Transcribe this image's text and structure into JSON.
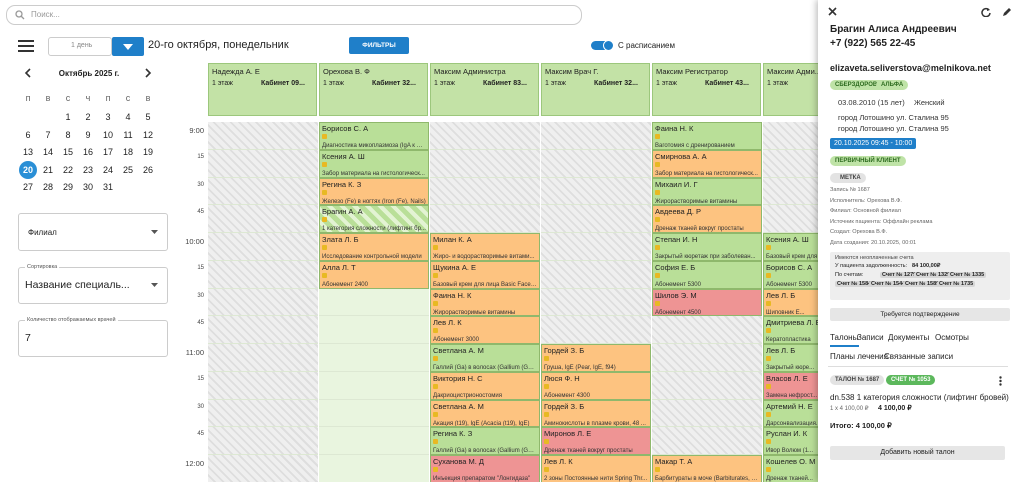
{
  "search_placeholder": "Поиск...",
  "toolbar": {
    "period": "1 день",
    "date": "20-го октября, понедельник",
    "filters": "ФИЛЬТРЫ",
    "schedule_toggle": "С расписанием"
  },
  "calendar": {
    "month": "Октябрь 2025 г.",
    "weekdays": [
      "п",
      "в",
      "с",
      "ч",
      "п",
      "с",
      "в"
    ],
    "weeks": [
      [
        null,
        null,
        1,
        2,
        3,
        4,
        5
      ],
      [
        6,
        7,
        8,
        9,
        10,
        11,
        12
      ],
      [
        13,
        14,
        15,
        16,
        17,
        18,
        19
      ],
      [
        20,
        21,
        22,
        23,
        24,
        25,
        26
      ],
      [
        27,
        28,
        29,
        30,
        31,
        null,
        null
      ]
    ],
    "selected": 20
  },
  "filters": {
    "branch": "Филиал",
    "sort_label": "Сортировка",
    "sort_value": "Название специаль...",
    "count_label": "Количество отображаемых врачей",
    "count_value": 7
  },
  "schedule": {
    "times": [
      "9:00",
      "15",
      "30",
      "45",
      "10:00",
      "15",
      "30",
      "45",
      "11:00",
      "15",
      "30",
      "45",
      "12:00"
    ],
    "doctors": [
      {
        "name": "Надежда А. Е",
        "floor": "1 этаж",
        "cabinet": "Кабинет 09...",
        "slots": [
          null,
          null,
          null,
          null,
          null,
          null,
          null,
          null,
          null,
          null,
          null,
          null,
          null
        ]
      },
      {
        "name": "Орехова В. Ф",
        "floor": "1 этаж",
        "cabinet": "Кабинет 32...",
        "slots": [
          {
            "patient": "Борисов С. А",
            "service": "Диагностика микоплазмоза (IgA к М...",
            "color": "#b9df98"
          },
          {
            "patient": "Ксения А. Ш",
            "service": "Забор материала на гистологическ...",
            "color": "#b9df98"
          },
          {
            "patient": "Регина К. З",
            "service": "Железо (Fe) в ногтях (Iron (Fe), Nails)",
            "color": "#fdc380"
          },
          {
            "patient": "Брагин А. А",
            "service": "1 категория сложности (лифтинг бр...",
            "color": "#b9df98",
            "striped": true
          },
          {
            "patient": "Злата Л. Б",
            "service": "Исследование контрольной модели",
            "color": "#fdc380"
          },
          {
            "patient": "Алла Л. Т",
            "service": "Абонемент 2400",
            "color": "#fdc380"
          },
          null,
          null,
          null,
          null,
          null,
          null,
          null
        ]
      },
      {
        "name": "Максим Администра...",
        "floor": "1 этаж",
        "cabinet": "Кабинет 83...",
        "slots": [
          null,
          null,
          null,
          null,
          {
            "patient": "Милан К. А",
            "service": "Жиро- и водорастворимые витами...",
            "color": "#fdc380"
          },
          {
            "patient": "Щукина А. Е",
            "service": "Базовый крем для лица Basic Face C...",
            "color": "#fdc380"
          },
          {
            "patient": "Фаина Н. К",
            "service": "Жирорастворимые витамины",
            "color": "#fdc380"
          },
          {
            "patient": "Лев Л. К",
            "service": "Абонемент 3000",
            "color": "#fdc380"
          },
          {
            "patient": "Светлана А. М",
            "service": "Галлий (Ga) в волосах (Gallium (Ga)...",
            "color": "#b9df98"
          },
          {
            "patient": "Виктория Н. С",
            "service": "Дакриоцистрионостомия",
            "color": "#fdc380"
          },
          {
            "patient": "Светлана А. М",
            "service": "Акация (t19), IgE (Acacia (t19), IgE)",
            "color": "#fdc380"
          },
          {
            "patient": "Регина К. З",
            "service": "Галлий (Ga) в волосах (Gallium (Ga)...",
            "color": "#b9df98"
          },
          {
            "patient": "Суханова М. Д",
            "service": "Инъекция препаратом \"Лонгидаза\"",
            "color": "#ee9494"
          }
        ]
      },
      {
        "name": "Максим Врач Г.",
        "floor": "1 этаж",
        "cabinet": "Кабинет 32...",
        "slots": [
          null,
          null,
          null,
          null,
          null,
          null,
          null,
          null,
          {
            "patient": "Гордей З. Б",
            "service": "Груша, IgE (Pear, IgE, f94)",
            "color": "#fdc380"
          },
          {
            "patient": "Люся Ф. Н",
            "service": "Абонемент 4300",
            "color": "#fdc380"
          },
          {
            "patient": "Гордей З. Б",
            "service": "Аминокислоты в плазме крови, 48 ...",
            "color": "#fdc380"
          },
          {
            "patient": "Миронов Л. Е",
            "service": "Дренаж тканей вокруг простаты",
            "color": "#ee9494"
          },
          {
            "patient": "Лев Л. К",
            "service": "2 зоны Постоянные нити Spring Thr...",
            "color": "#fdc380"
          }
        ]
      },
      {
        "name": "Максим Регистратор...",
        "floor": "1 этаж",
        "cabinet": "Кабинет 43...",
        "slots": [
          {
            "patient": "Фаина Н. К",
            "service": "Ваготомия с дренированием",
            "color": "#b9df98"
          },
          {
            "patient": "Смирнова А. А",
            "service": "Забор материала на гистологическ...",
            "color": "#fdc380"
          },
          {
            "patient": "Михаил И. Г",
            "service": "Жирорастворимые витамины",
            "color": "#b9df98"
          },
          {
            "patient": "Авдеева Д. Р",
            "service": "Дренаж тканей вокруг простаты",
            "color": "#fdc380"
          },
          {
            "patient": "Степан И. Н",
            "service": "Закрытый кюретаж при заболеван...",
            "color": "#b9df98"
          },
          {
            "patient": "София Е. Б",
            "service": "Абонемент 5300",
            "color": "#b9df98"
          },
          {
            "patient": "Шилов Э. М",
            "service": "Абонемент 4500",
            "color": "#ee9494"
          },
          null,
          null,
          null,
          null,
          null,
          {
            "patient": "Макар Т. А",
            "service": "Барбитураты в моче (Barbiturates, U...",
            "color": "#fdc380"
          }
        ]
      },
      {
        "name": "Максим Адми...",
        "floor": "1 этаж",
        "cabinet": null,
        "slots": [
          null,
          null,
          null,
          null,
          {
            "patient": "Ксения А. Ш",
            "service": "Базовый крем для л...",
            "color": "#b9df98"
          },
          {
            "patient": "Борисов С. А",
            "service": "Абонемент 5300",
            "color": "#b9df98"
          },
          {
            "patient": "Лев Л. Б",
            "service": "Шиповник Е...",
            "color": "#fdc380"
          },
          {
            "patient": "Дмитриева Л. Е",
            "service": "Кератопластика",
            "color": "#b9df98"
          },
          {
            "patient": "Лев Л. Б",
            "service": "Закрытый кюре...",
            "color": "#b9df98"
          },
          {
            "patient": "Власов Л. Е",
            "service": "Замена нефрост...",
            "color": "#ee9494"
          },
          {
            "patient": "Артемий Н. Е",
            "service": "Дарсонвализация...",
            "color": "#b9df98"
          },
          {
            "patient": "Руслан И. К",
            "service": "Ивор Волюм (1...",
            "color": "#b9df98"
          },
          {
            "patient": "Кошелев О. М",
            "service": "Дренаж тканей...",
            "color": "#b9df98"
          }
        ]
      }
    ]
  },
  "patient": {
    "name": "Брагин Алиса Андреевич",
    "phone": "+7 (922) 565 22-45",
    "email": "elizaveta.seliverstova@melnikova.net",
    "tags": [
      "СБЕРЗДОРОВЬЕ",
      "АЛЬФА"
    ],
    "birth": "03.08.2010 (15 лет)",
    "gender": "Женский",
    "addresses": [
      "город Лотошино ул. Сталина 95",
      "город Лотошино ул. Сталина 95"
    ],
    "appointment_time": "20.10.2025 09:45 - 10:00",
    "client_type": "ПЕРВИЧНЫЙ КЛИЕНТ",
    "label_button": "МЕТКА",
    "info": [
      "Запись № 1687",
      "Исполнитель: Орехова В.Ф.",
      "Филиал: Основной филиал",
      "Источник пациента: Оффлайн реклама",
      "Создал: Орехова В.Ф.",
      "Дата создания: 20.10.2025, 00:01"
    ],
    "debt": {
      "title": "Имеются неоплаченные счета",
      "amount_label": "У пациента задолженность:",
      "amount": "84 100,00₽",
      "invoices_label": "По счетам:",
      "invoices": [
        "Счет № 1279",
        "Счет № 1329",
        "Счет № 1335",
        "Счет № 1584",
        "Счет № 1544",
        "Счет № 1589",
        "Счет № 1735"
      ]
    },
    "confirm": "Требуется подтверждение",
    "tabs": [
      "Талоны",
      "Записи",
      "Документы",
      "Осмотры",
      "Планы лечения",
      "Связанные записи"
    ],
    "ticket": {
      "number": "ТАЛОН № 1687",
      "invoice": "СЧЕТ № 1053",
      "service": "dn.538 1 категория сложности (лифтинг бровей)",
      "qty_price": "1 x 4 100,00 ₽",
      "sum": "4 100,00 ₽",
      "total": "Итого: 4 100,00 ₽"
    },
    "add_ticket": "Добавить новый талон"
  }
}
